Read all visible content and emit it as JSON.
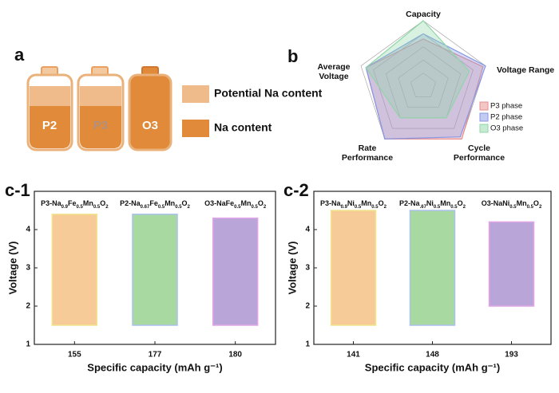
{
  "panel_labels": [
    "a",
    "b",
    "c-1",
    "c-2"
  ],
  "schematic": {
    "batteries": [
      "P2",
      "P3",
      "O3"
    ],
    "legend": [
      "Potential Na content",
      "Na content"
    ]
  },
  "chart_data": [
    {
      "type": "radar",
      "axes": [
        [
          "Capacity"
        ],
        [
          "Voltage Range"
        ],
        [
          "Cycle",
          "Performance"
        ],
        [
          "Rate",
          "Performance"
        ],
        [
          "Average",
          "Voltage"
        ]
      ],
      "rlim": [
        0,
        5
      ],
      "rticks": [
        1,
        2,
        3,
        4,
        5
      ],
      "legend": "right",
      "series": [
        {
          "name": "P3 phase",
          "color": "#e88e8e",
          "values": [
            3.6,
            4.8,
            5,
            5,
            4.6
          ]
        },
        {
          "name": "P2 phase",
          "color": "#8797e6",
          "values": [
            4,
            5,
            4.8,
            5,
            4.6
          ]
        },
        {
          "name": "O3 phase",
          "color": "#8fd6a6",
          "values": [
            5,
            3.7,
            3,
            3,
            4.6
          ]
        }
      ]
    },
    {
      "type": "floating-bar",
      "xlabel": "Specific capacity (mAh g⁻¹)",
      "ylabel": "Voltage (V)",
      "categories": [
        "155",
        "177",
        "180"
      ],
      "bar_labels": [
        "P3-Na0.9Fe0.5Mn0.5O2",
        "P2-Na0.67Fe0.5Mn0.5O2",
        "O3-NaFe0.5Mn0.5O2"
      ],
      "low": [
        1.5,
        1.5,
        1.5
      ],
      "high": [
        4.4,
        4.4,
        4.3
      ],
      "colors": [
        "#f6cb98",
        "#a8d9a0",
        "#b9a5d8"
      ],
      "edge_colors": [
        "#f3e38a",
        "#a9c2ee",
        "#e2a6e8"
      ],
      "ylim": [
        1,
        5
      ],
      "yticks": [
        1,
        2,
        3,
        4
      ]
    },
    {
      "type": "floating-bar",
      "xlabel": "Specific capacity (mAh g⁻¹)",
      "ylabel": "Voltage (V)",
      "categories": [
        "141",
        "148",
        "193"
      ],
      "bar_labels": [
        "P3-Na0.9Ni0.5Mn0.5O2",
        "P2-Na.67Ni0.5Mn0.5O2",
        "O3-NaNi0.5Mn0.5O2"
      ],
      "low": [
        1.5,
        1.5,
        2.0
      ],
      "high": [
        4.5,
        4.5,
        4.2
      ],
      "colors": [
        "#f6cb98",
        "#a8d9a0",
        "#b9a5d8"
      ],
      "edge_colors": [
        "#f3e38a",
        "#a9c2ee",
        "#e2a6e8"
      ],
      "ylim": [
        1,
        5
      ],
      "yticks": [
        1,
        2,
        3,
        4
      ]
    }
  ]
}
